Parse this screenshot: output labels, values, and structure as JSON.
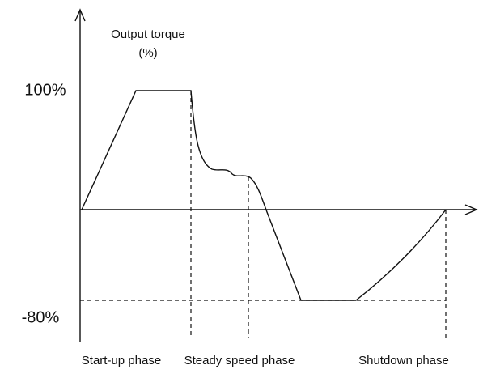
{
  "axis_title": [
    "Output torque",
    "(%)"
  ],
  "levels": [
    "100%",
    "-80%"
  ],
  "phases": [
    "Start-up phase",
    "Steady speed phase",
    "Shutdown phase"
  ]
}
